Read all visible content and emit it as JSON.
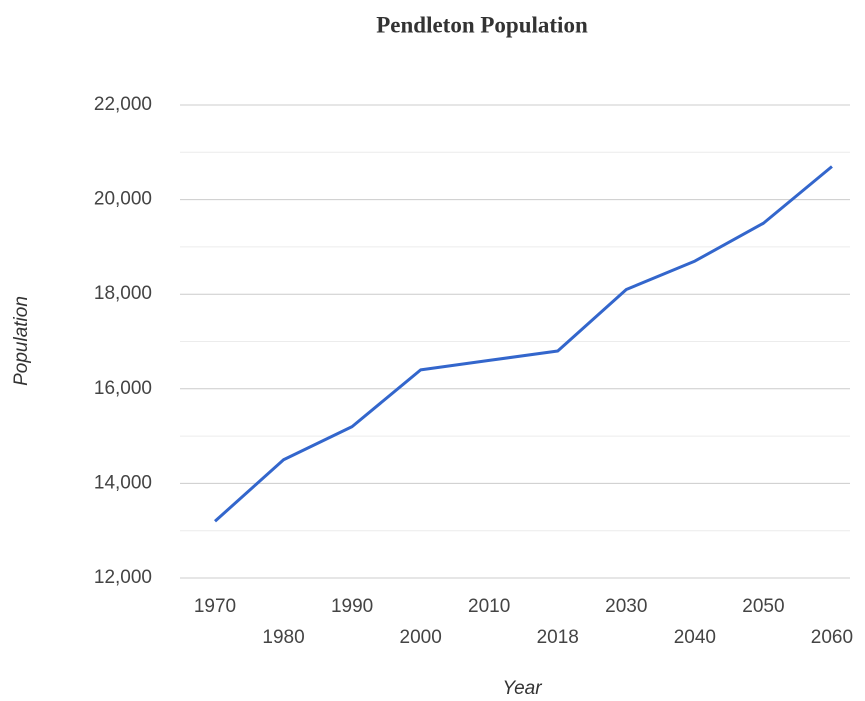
{
  "chart_data": {
    "type": "line",
    "title": "Pendleton Population",
    "x_label": "Year",
    "y_label": "Population",
    "categories": [
      "1970",
      "1980",
      "1990",
      "2000",
      "2010",
      "2018",
      "2030",
      "2040",
      "2050",
      "2060"
    ],
    "series": [
      {
        "name": "Population",
        "color": "#3366cc",
        "values": [
          13200,
          14500,
          15200,
          16400,
          16600,
          16800,
          18100,
          18700,
          19500,
          20700
        ]
      }
    ],
    "ylim": [
      12000,
      22000
    ],
    "yticks": [
      {
        "value": 12000,
        "label": "12,000"
      },
      {
        "value": 14000,
        "label": "14,000"
      },
      {
        "value": 16000,
        "label": "16,000"
      },
      {
        "value": 18000,
        "label": "18,000"
      },
      {
        "value": 20000,
        "label": "20,000"
      },
      {
        "value": 22000,
        "label": "22,000"
      }
    ],
    "minor_yticks": [
      13000,
      15000,
      17000,
      19000,
      21000
    ],
    "grid": true,
    "legend": false
  }
}
